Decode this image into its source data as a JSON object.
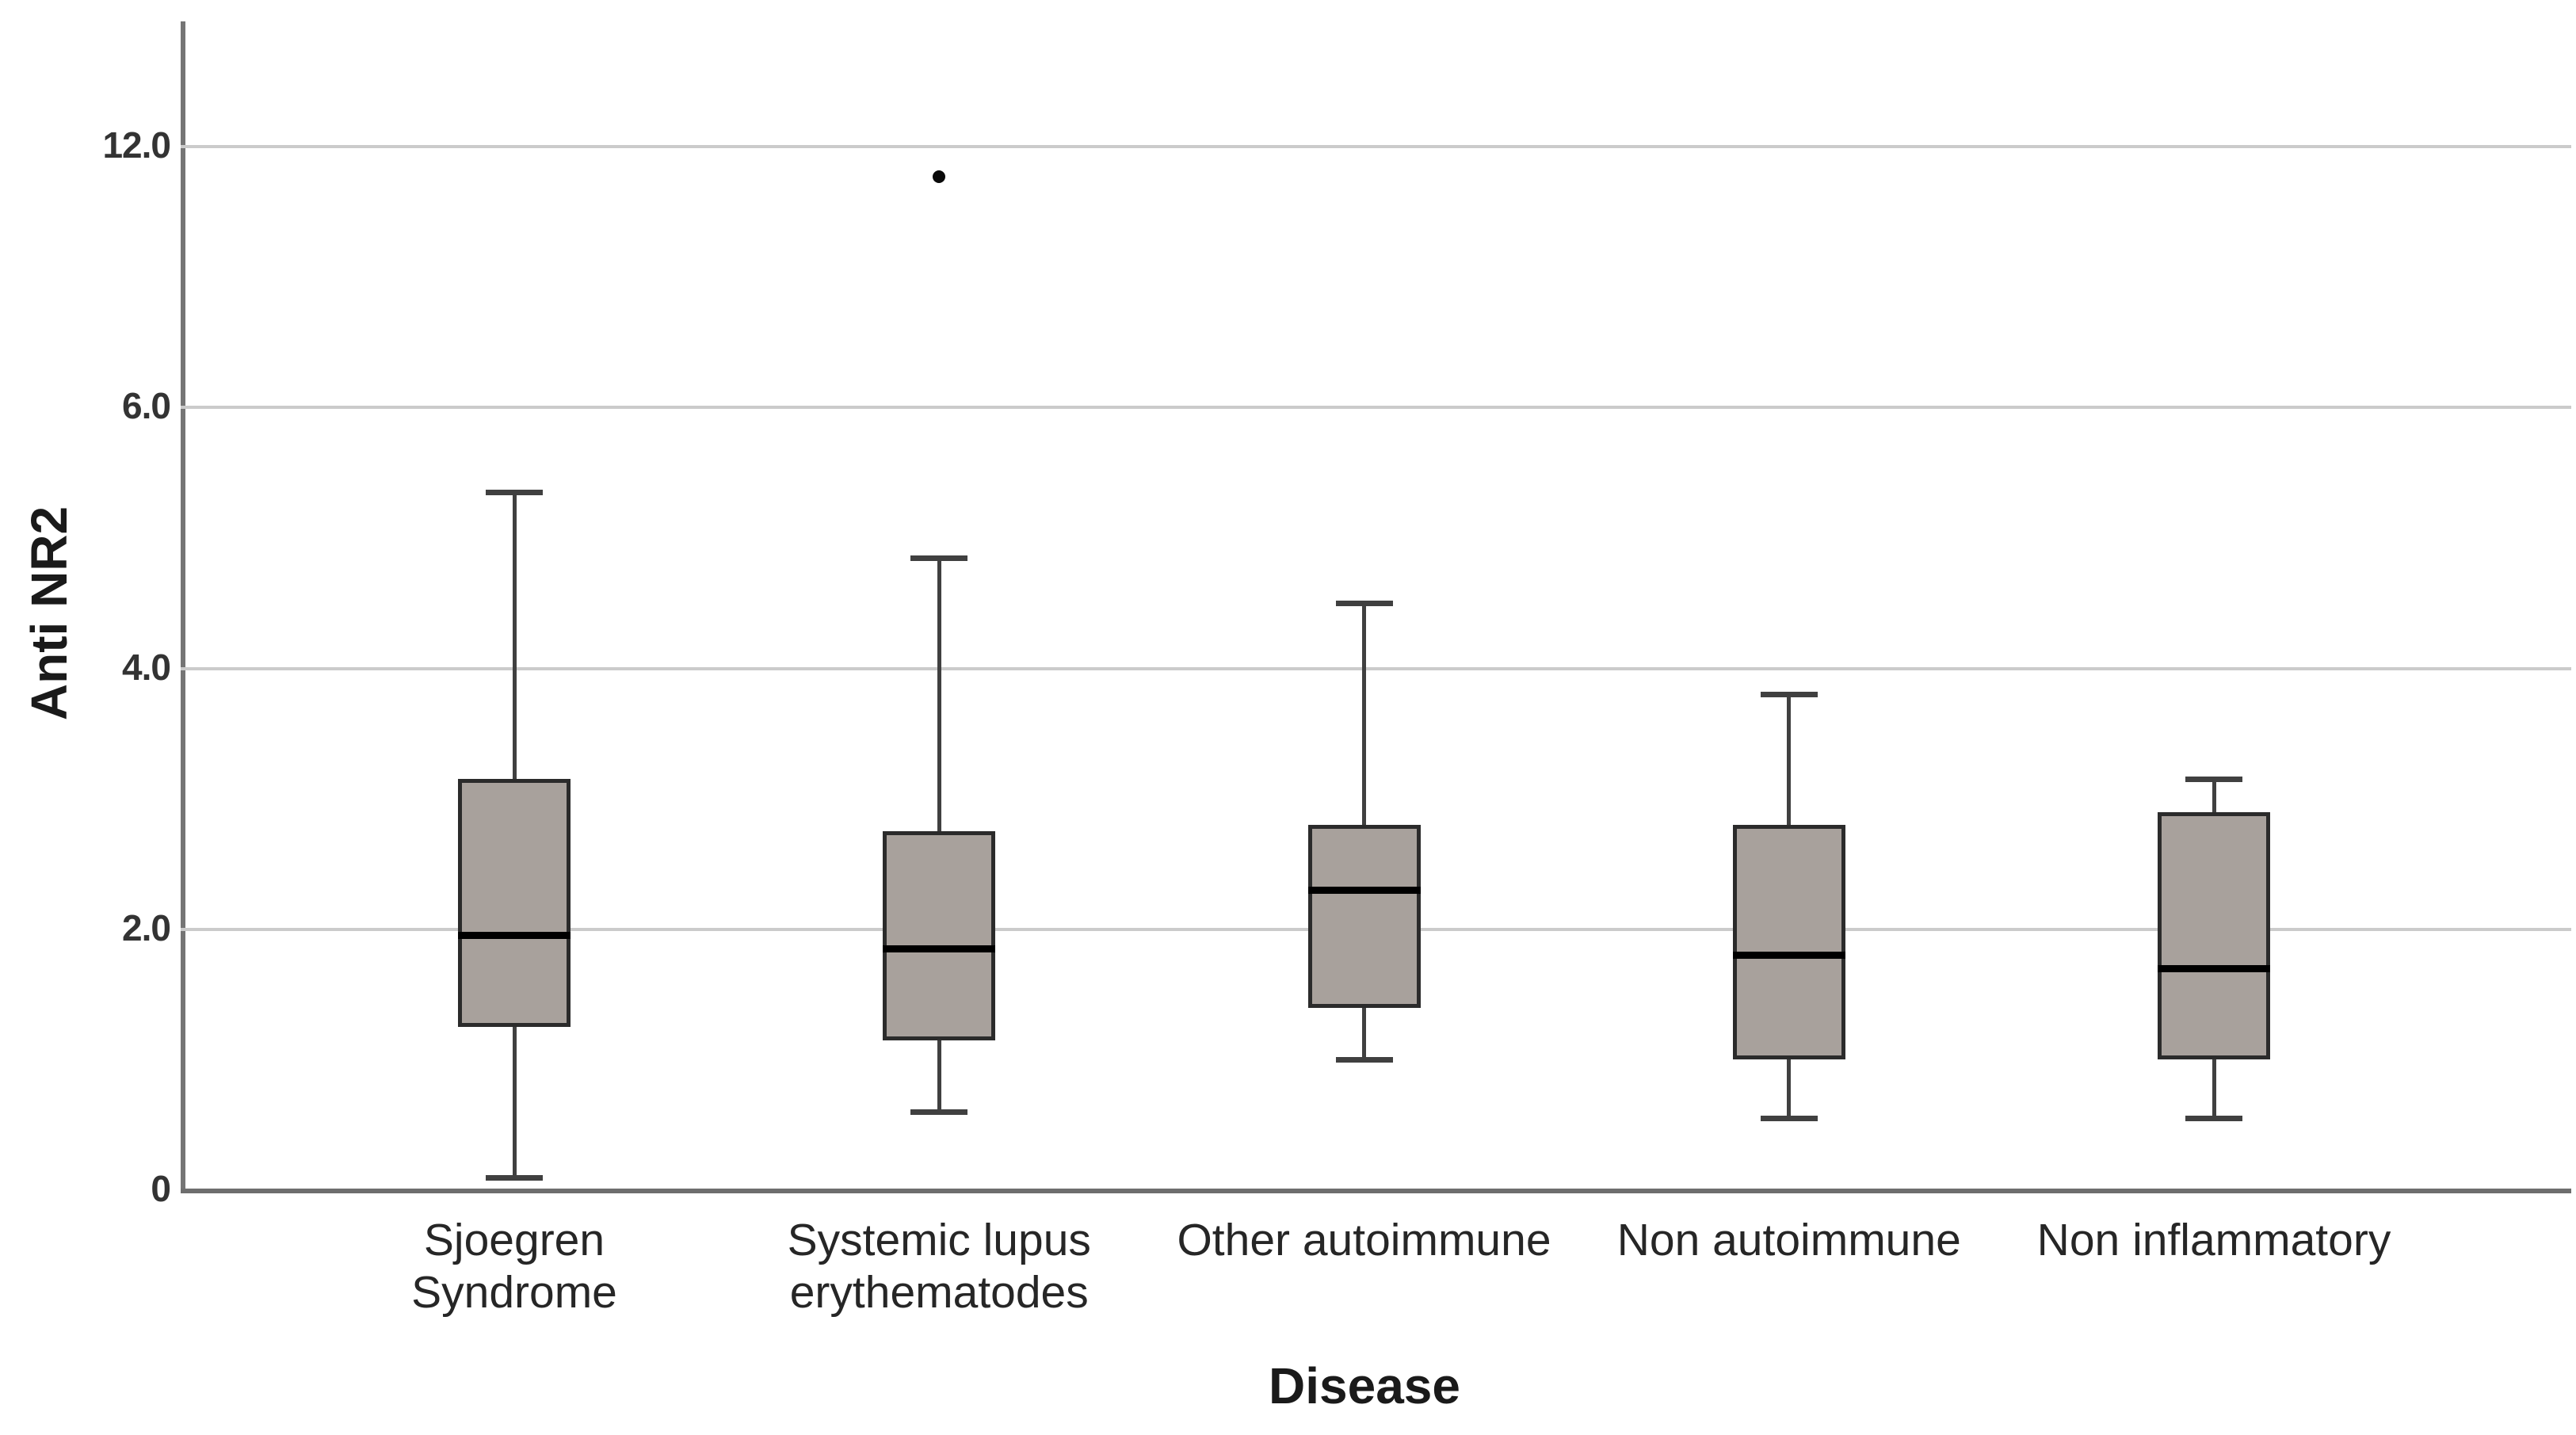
{
  "figure": {
    "background": "#ffffff"
  },
  "y_axis": {
    "title": "Anti NR2",
    "tick_labels": [
      "12.0",
      "6.0",
      "4.0",
      "2.0",
      "0"
    ],
    "tick_values": [
      12,
      6,
      4,
      2,
      0
    ],
    "scale_note": "tick labels equally spaced on axis; interval 6-12 compressed (nonlinear scale)"
  },
  "x_axis": {
    "title": "Disease"
  },
  "colors": {
    "box_fill": "#a8a19c",
    "box_border": "#2b2b2b",
    "whisker": "#404040",
    "median": "#000000",
    "gridline": "#cbcbcb",
    "axis": "#757575",
    "text": "#262626",
    "background": "#ffffff"
  },
  "chart_data": {
    "type": "boxplot",
    "title": "",
    "xlabel": "Disease",
    "ylabel": "Anti NR2",
    "ylim": [
      0,
      13.3
    ],
    "grid": "horizontal gridlines at 2.0, 4.0, 6.0, 12.0",
    "legend": "none",
    "categories": [
      "Sjoegren Syndrome",
      "Systemic lupus erythematodes",
      "Other autoimmune",
      "Non autoimmune",
      "Non inflammatory"
    ],
    "category_label_lines": [
      [
        "Sjoegren",
        "Syndrome"
      ],
      [
        "Systemic lupus",
        "erythematodes"
      ],
      [
        "Other autoimmune"
      ],
      [
        "Non autoimmune"
      ],
      [
        "Non inflammatory"
      ]
    ],
    "series": [
      {
        "name": "Sjoegren Syndrome",
        "whisker_low": 0.1,
        "q1": 1.25,
        "median": 1.95,
        "q3": 3.15,
        "whisker_high": 5.35,
        "outliers": []
      },
      {
        "name": "Systemic lupus erythematodes",
        "whisker_low": 0.6,
        "q1": 1.15,
        "median": 1.85,
        "q3": 2.75,
        "whisker_high": 4.85,
        "outliers": [
          11.3
        ]
      },
      {
        "name": "Other autoimmune",
        "whisker_low": 1.0,
        "q1": 1.4,
        "median": 2.3,
        "q3": 2.8,
        "whisker_high": 4.5,
        "outliers": []
      },
      {
        "name": "Non autoimmune",
        "whisker_low": 0.55,
        "q1": 1.0,
        "median": 1.8,
        "q3": 2.8,
        "whisker_high": 3.8,
        "outliers": []
      },
      {
        "name": "Non inflammatory",
        "whisker_low": 0.55,
        "q1": 1.0,
        "median": 1.7,
        "q3": 2.9,
        "whisker_high": 3.15,
        "outliers": []
      }
    ]
  }
}
